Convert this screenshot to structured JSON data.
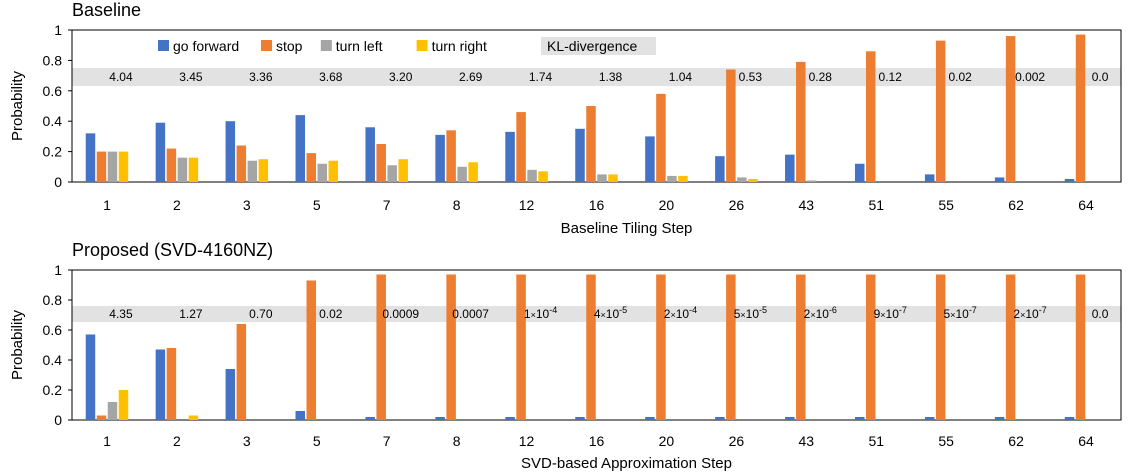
{
  "colors": {
    "go_forward": "#4472c4",
    "stop": "#ed7d31",
    "turn_left": "#a5a5a5",
    "turn_right": "#ffc000",
    "kl_band": "#e2e2e2"
  },
  "legend": {
    "items": [
      "go forward",
      "stop",
      "turn left",
      "turn right"
    ],
    "kl_label": "KL-divergence"
  },
  "chart_data": [
    {
      "type": "bar",
      "title": "Baseline",
      "xlabel": "Baseline Tiling Step",
      "ylabel": "Probability",
      "ylim": [
        0,
        1
      ],
      "yticks": [
        "0",
        "0.2",
        "0.4",
        "0.6",
        "0.8",
        "1"
      ],
      "legend_position": "top",
      "categories": [
        "1",
        "2",
        "3",
        "5",
        "7",
        "8",
        "12",
        "16",
        "20",
        "26",
        "43",
        "51",
        "55",
        "62",
        "64"
      ],
      "series": [
        {
          "name": "go forward",
          "values": [
            0.32,
            0.39,
            0.4,
            0.44,
            0.36,
            0.31,
            0.33,
            0.35,
            0.3,
            0.17,
            0.18,
            0.12,
            0.05,
            0.03,
            0.02
          ]
        },
        {
          "name": "stop",
          "values": [
            0.2,
            0.22,
            0.24,
            0.19,
            0.25,
            0.34,
            0.46,
            0.5,
            0.58,
            0.74,
            0.79,
            0.86,
            0.93,
            0.96,
            0.97
          ]
        },
        {
          "name": "turn left",
          "values": [
            0.2,
            0.16,
            0.14,
            0.12,
            0.11,
            0.1,
            0.08,
            0.05,
            0.04,
            0.03,
            0.01,
            0.0,
            0.0,
            0.0,
            0.0
          ]
        },
        {
          "name": "turn right",
          "values": [
            0.2,
            0.16,
            0.15,
            0.14,
            0.15,
            0.13,
            0.07,
            0.05,
            0.04,
            0.02,
            0.0,
            0.0,
            0.0,
            0.0,
            0.0
          ]
        }
      ],
      "kl_divergence": [
        "4.04",
        "3.45",
        "3.36",
        "3.68",
        "3.20",
        "2.69",
        "1.74",
        "1.38",
        "1.04",
        "0.53",
        "0.28",
        "0.12",
        "0.02",
        "0.002",
        "0.0"
      ]
    },
    {
      "type": "bar",
      "title": "Proposed (SVD-4160NZ)",
      "xlabel": "SVD-based Approximation Step",
      "ylabel": "Probability",
      "ylim": [
        0,
        1
      ],
      "yticks": [
        "0",
        "0.2",
        "0.4",
        "0.6",
        "0.8",
        "1"
      ],
      "categories": [
        "1",
        "2",
        "3",
        "5",
        "7",
        "8",
        "12",
        "16",
        "20",
        "26",
        "43",
        "51",
        "55",
        "62",
        "64"
      ],
      "series": [
        {
          "name": "go forward",
          "values": [
            0.57,
            0.47,
            0.34,
            0.06,
            0.02,
            0.02,
            0.02,
            0.02,
            0.02,
            0.02,
            0.02,
            0.02,
            0.02,
            0.02,
            0.02
          ]
        },
        {
          "name": "stop",
          "values": [
            0.03,
            0.48,
            0.64,
            0.93,
            0.97,
            0.97,
            0.97,
            0.97,
            0.97,
            0.97,
            0.97,
            0.97,
            0.97,
            0.97,
            0.97
          ]
        },
        {
          "name": "turn left",
          "values": [
            0.12,
            0.0,
            0.0,
            0.0,
            0.0,
            0.0,
            0.0,
            0.0,
            0.0,
            0.0,
            0.0,
            0.0,
            0.0,
            0.0,
            0.0
          ]
        },
        {
          "name": "turn right",
          "values": [
            0.2,
            0.03,
            0.0,
            0.0,
            0.0,
            0.0,
            0.0,
            0.0,
            0.0,
            0.0,
            0.0,
            0.0,
            0.0,
            0.0,
            0.0
          ]
        }
      ],
      "kl_divergence": [
        {
          "m": "4.35"
        },
        {
          "m": "1.27"
        },
        {
          "m": "0.70"
        },
        {
          "m": "0.02"
        },
        {
          "m": "0.0009"
        },
        {
          "m": "0.0007"
        },
        {
          "m": "1",
          "x": "×",
          "b": "10",
          "e": "-4"
        },
        {
          "m": "4",
          "x": "×",
          "b": "10",
          "e": "-5"
        },
        {
          "m": "2",
          "x": "×",
          "b": "10",
          "e": "-4"
        },
        {
          "m": "5",
          "x": "×",
          "b": "10",
          "e": "-5"
        },
        {
          "m": "2",
          "x": "×",
          "b": "10",
          "e": "-6"
        },
        {
          "m": "9",
          "x": "×",
          "b": "10",
          "e": "-7"
        },
        {
          "m": "5",
          "x": "×",
          "b": "10",
          "e": "-7"
        },
        {
          "m": "2",
          "x": "×",
          "b": "10",
          "e": "-7"
        },
        {
          "m": "0.0"
        }
      ]
    }
  ]
}
